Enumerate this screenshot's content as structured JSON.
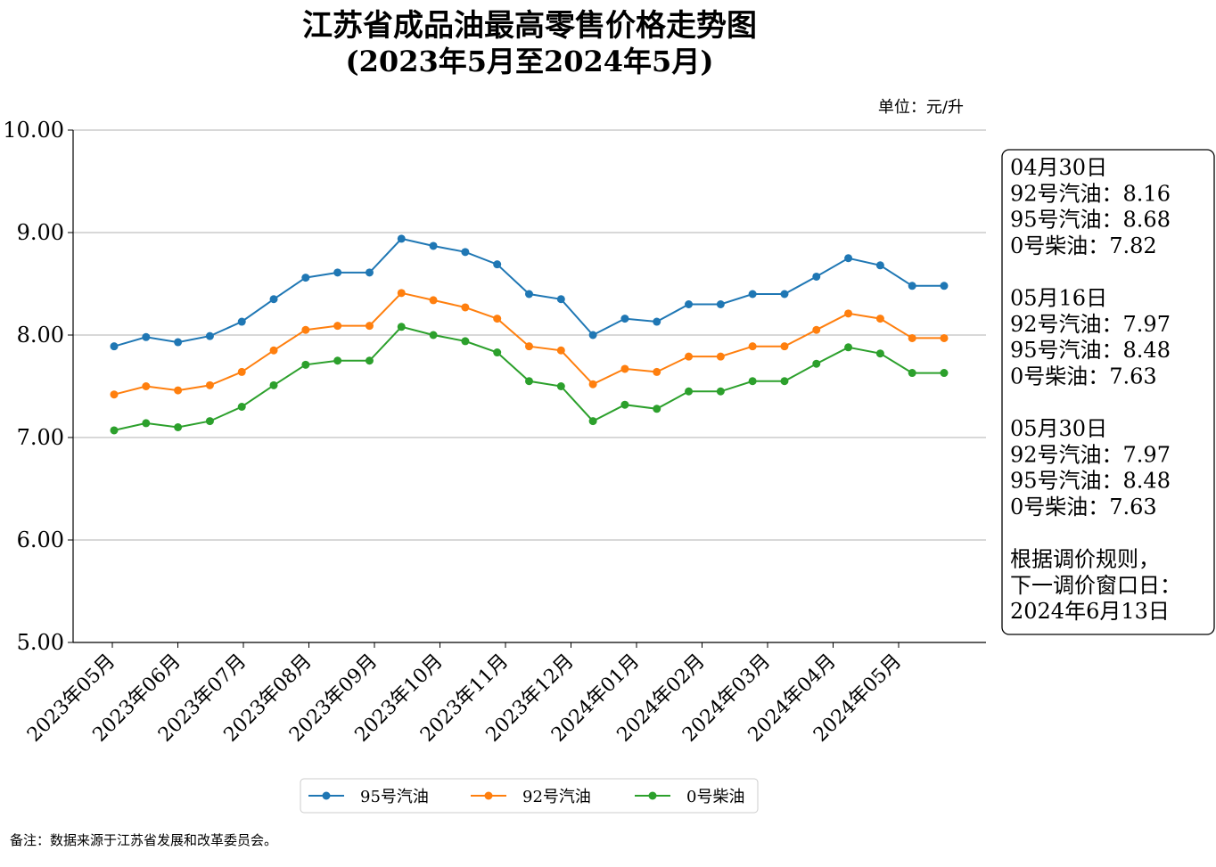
{
  "chart_data": {
    "type": "line",
    "title": "江苏省成品油最高零售价格走势图",
    "subtitle": "(2023年5月至2024年5月)",
    "unit_label": "单位：元/升",
    "footnote": "备注：数据来源于江苏省发展和改革委员会。",
    "ylim": [
      5.0,
      10.0
    ],
    "y_ticks": [
      "5.00",
      "6.00",
      "7.00",
      "8.00",
      "9.00",
      "10.00"
    ],
    "x_ticks": [
      "2023年05月",
      "2023年06月",
      "2023年07月",
      "2023年08月",
      "2023年09月",
      "2023年10月",
      "2023年11月",
      "2023年12月",
      "2024年01月",
      "2024年02月",
      "2024年03月",
      "2024年04月",
      "2024年05月"
    ],
    "grid": "horizontal",
    "legend_position": "bottom-center",
    "series": [
      {
        "name": "95号汽油",
        "color": "#1f77b4",
        "values": [
          7.89,
          7.98,
          7.93,
          7.99,
          8.13,
          8.35,
          8.56,
          8.61,
          8.61,
          8.94,
          8.87,
          8.81,
          8.69,
          8.4,
          8.35,
          8.0,
          8.16,
          8.13,
          8.3,
          8.3,
          8.4,
          8.4,
          8.57,
          8.75,
          8.68,
          8.48,
          8.48
        ]
      },
      {
        "name": "92号汽油",
        "color": "#ff7f0e",
        "values": [
          7.42,
          7.5,
          7.46,
          7.51,
          7.64,
          7.85,
          8.05,
          8.09,
          8.09,
          8.41,
          8.34,
          8.27,
          8.16,
          7.89,
          7.85,
          7.52,
          7.67,
          7.64,
          7.79,
          7.79,
          7.89,
          7.89,
          8.05,
          8.21,
          8.16,
          7.97,
          7.97
        ]
      },
      {
        "name": "0号柴油",
        "color": "#2ca02c",
        "values": [
          7.07,
          7.14,
          7.1,
          7.16,
          7.3,
          7.51,
          7.71,
          7.75,
          7.75,
          8.08,
          8.0,
          7.94,
          7.83,
          7.55,
          7.5,
          7.16,
          7.32,
          7.28,
          7.45,
          7.45,
          7.55,
          7.55,
          7.72,
          7.88,
          7.82,
          7.63,
          7.63
        ]
      }
    ]
  },
  "info_box": {
    "lines": [
      "04月30日",
      "92号汽油：8.16",
      "95号汽油：8.68",
      "  0号柴油：7.82",
      "",
      "05月16日",
      "92号汽油：7.97",
      "95号汽油：8.48",
      "  0号柴油：7.63",
      "",
      "05月30日",
      "92号汽油：7.97",
      "95号汽油：8.48",
      "  0号柴油：7.63",
      "",
      "根据调价规则，",
      "下一调价窗口日：",
      "2024年6月13日"
    ]
  }
}
